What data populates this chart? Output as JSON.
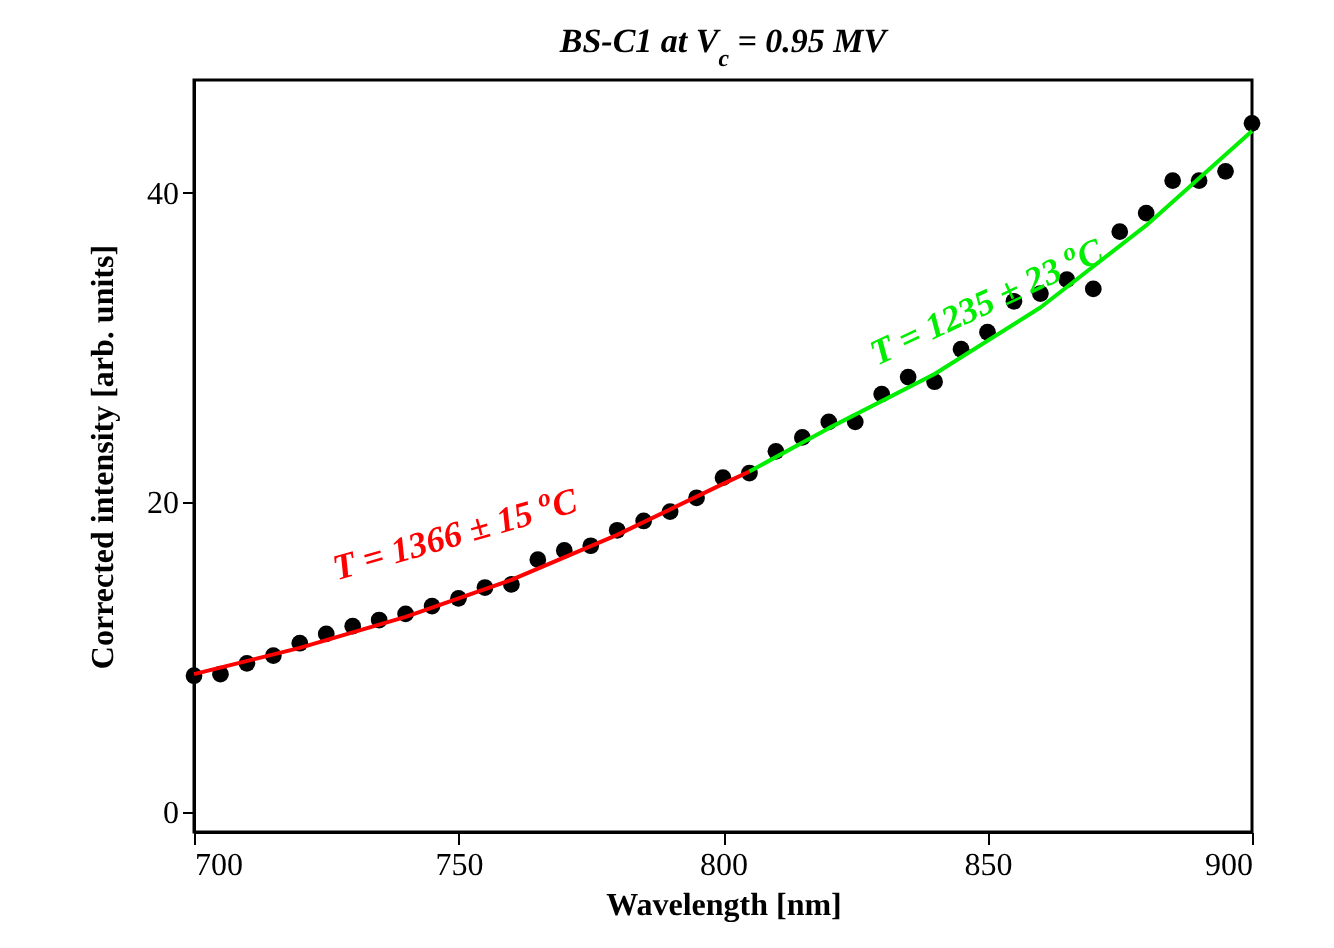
{
  "chart_data": {
    "type": "scatter",
    "title": "BS-C1 at V$_{c}$ = 0.95 MV",
    "xlabel": "Wavelength   [nm]",
    "ylabel": "Corrected intensity [arb. units]",
    "xlim": [
      700,
      900
    ],
    "xticks": [
      700,
      750,
      800,
      850,
      900
    ],
    "ylim": [
      -1.3,
      47.3
    ],
    "yticks": [
      0,
      20,
      40
    ],
    "grid": false,
    "series": [
      {
        "color": "#000000",
        "marker": "circle",
        "x": [
          700,
          705,
          710,
          715,
          720,
          725,
          730,
          735,
          740,
          745,
          750,
          755,
          760,
          765,
          770,
          775,
          780,
          785,
          790,
          795,
          800,
          805,
          810,
          815,
          820,
          825,
          830,
          835,
          840,
          845,
          850,
          855,
          860,
          865,
          870,
          875,
          880,
          885,
          890,
          895,
          900
        ],
        "values": [
          8.8,
          8.9,
          9.6,
          10.1,
          10.9,
          11.5,
          12.0,
          12.4,
          12.8,
          13.3,
          13.8,
          14.5,
          14.7,
          16.3,
          16.9,
          17.2,
          18.2,
          18.8,
          19.4,
          20.3,
          21.6,
          21.9,
          23.3,
          24.2,
          25.2,
          25.2,
          27.0,
          28.1,
          27.8,
          29.9,
          31.0,
          33.0,
          33.5,
          34.4,
          33.8,
          37.5,
          38.7,
          40.8,
          40.8,
          41.4,
          44.5
        ]
      },
      {
        "type": "line",
        "color": "#ff0000",
        "x": [
          700,
          720,
          740,
          760,
          780,
          800,
          805
        ],
        "values": [
          8.9,
          10.6,
          12.6,
          15.0,
          17.9,
          21.2,
          22.0
        ]
      },
      {
        "type": "line",
        "color": "#00ee00",
        "x": [
          805,
          820,
          840,
          860,
          880,
          900
        ],
        "values": [
          22.0,
          24.8,
          28.3,
          32.6,
          37.9,
          44.0
        ]
      }
    ],
    "annotations": [
      "T = 1366 ± 15 $^{o}$C",
      "T = 1235 ± 23 $^{o}$C"
    ]
  }
}
